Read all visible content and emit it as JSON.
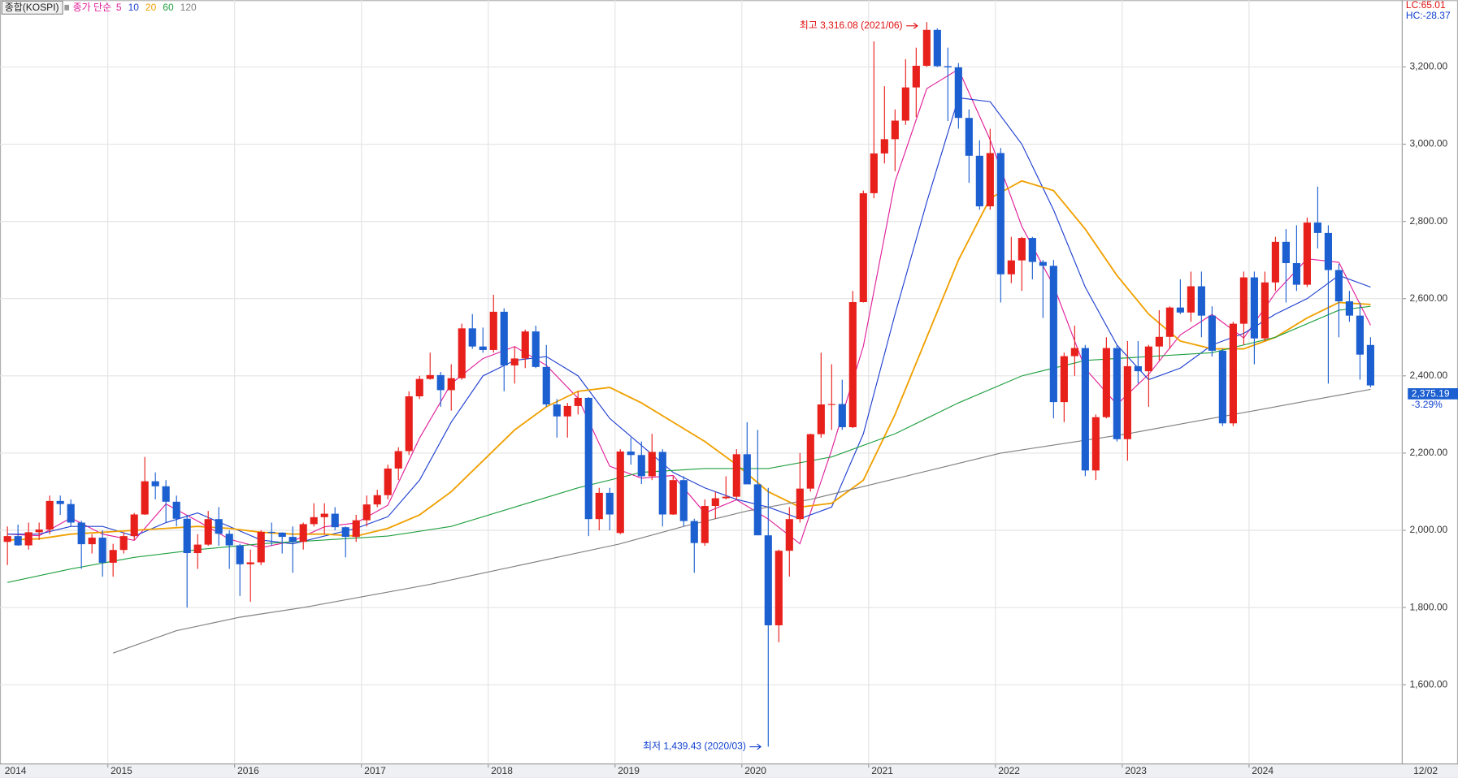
{
  "chart_data": {
    "type": "candlestick",
    "legend_title": "종합(KOSPI)",
    "ma_label": "종가 단순",
    "indicators": [
      {
        "text": "LC:65.01",
        "color": "#e01010"
      },
      {
        "text": "HC:-28.37",
        "color": "#1040d0"
      }
    ],
    "x_end_label": "12/02",
    "current_price_label": "2,375.19",
    "current_change": "-3.29%",
    "annotations": {
      "high": "최고 3,316.08 (2021/06)",
      "low": "최저 1,439.43 (2020/03)"
    },
    "categories": [
      "2014",
      null,
      null,
      null,
      null,
      null,
      null,
      null,
      null,
      null,
      "2015",
      null,
      null,
      null,
      null,
      null,
      null,
      null,
      null,
      null,
      null,
      null,
      "2016",
      null,
      null,
      null,
      null,
      null,
      null,
      null,
      null,
      null,
      null,
      null,
      "2017",
      null,
      null,
      null,
      null,
      null,
      null,
      null,
      null,
      null,
      null,
      null,
      "2018",
      null,
      null,
      null,
      null,
      null,
      null,
      null,
      null,
      null,
      null,
      null,
      "2019",
      null,
      null,
      null,
      null,
      null,
      null,
      null,
      null,
      null,
      null,
      null,
      "2020",
      null,
      null,
      null,
      null,
      null,
      null,
      null,
      null,
      null,
      null,
      null,
      "2021",
      null,
      null,
      null,
      null,
      null,
      null,
      null,
      null,
      null,
      null,
      null,
      "2022",
      null,
      null,
      null,
      null,
      null,
      null,
      null,
      null,
      null,
      null,
      null,
      "2023",
      null,
      null,
      null,
      null,
      null,
      null,
      null,
      null,
      null,
      null,
      null,
      "2024",
      null,
      null,
      null,
      null,
      null,
      null,
      null,
      null,
      null,
      null,
      null
    ],
    "candles": {
      "up_color": "#e8201c",
      "down_color": "#1c5fd0",
      "open": [
        1970,
        1985,
        1961,
        1995,
        2002,
        2076,
        2068,
        2020,
        1964,
        1981,
        1916,
        1949,
        1985,
        2041,
        2127,
        2114,
        2074,
        2030,
        1941,
        1963,
        2029,
        1991,
        1961,
        1912,
        1917,
        1996,
        1994,
        1983,
        1970,
        2016,
        2034,
        2043,
        2008,
        1983,
        2026,
        2067,
        2091,
        2160,
        2205,
        2347,
        2392,
        2402,
        2363,
        2394,
        2523,
        2476,
        2467,
        2566,
        2427,
        2445,
        2515,
        2423,
        2326,
        2295,
        2322,
        2343,
        2029,
        2097,
        1993,
        2204,
        2195,
        2140,
        2203,
        2041,
        2130,
        2024,
        1967,
        2063,
        2083,
        2087,
        2197,
        2119,
        1987,
        1754,
        1947,
        2029,
        2108,
        2249,
        2326,
        2327,
        2267,
        2591,
        2873,
        2976,
        3013,
        3061,
        3147,
        3203,
        3296,
        3202,
        3199,
        3068,
        2970,
        2839,
        2977,
        2663,
        2699,
        2757,
        2695,
        2685,
        2332,
        2451,
        2472,
        2155,
        2293,
        2472,
        2236,
        2425,
        2412,
        2476,
        2501,
        2577,
        2564,
        2632,
        2556,
        2465,
        2277,
        2535,
        2655,
        2497,
        2642,
        2747,
        2692,
        2636,
        2797,
        2770,
        2674,
        2593,
        2556,
        2480
      ],
      "high": [
        2010,
        2015,
        2020,
        2020,
        2090,
        2090,
        2080,
        2025,
        1990,
        2000,
        1965,
        1995,
        2045,
        2190,
        2150,
        2130,
        2090,
        2040,
        1990,
        2050,
        2060,
        2000,
        1965,
        1950,
        2000,
        2020,
        1995,
        2010,
        2020,
        2070,
        2070,
        2060,
        2010,
        2040,
        2090,
        2105,
        2170,
        2215,
        2360,
        2400,
        2460,
        2410,
        2430,
        2535,
        2560,
        2525,
        2610,
        2575,
        2475,
        2520,
        2530,
        2480,
        2340,
        2330,
        2360,
        2345,
        2110,
        2110,
        2210,
        2240,
        2230,
        2250,
        2210,
        2140,
        2140,
        2030,
        2080,
        2100,
        2140,
        2210,
        2280,
        2260,
        2110,
        1950,
        2060,
        2200,
        2250,
        2460,
        2430,
        2390,
        2620,
        2880,
        3266,
        3150,
        3090,
        3220,
        3250,
        3316.08,
        3300,
        3250,
        3210,
        3090,
        3010,
        3040,
        2990,
        2760,
        2760,
        2760,
        2700,
        2700,
        2460,
        2530,
        2480,
        2300,
        2500,
        2480,
        2490,
        2490,
        2480,
        2570,
        2580,
        2650,
        2670,
        2670,
        2580,
        2470,
        2540,
        2670,
        2670,
        2670,
        2760,
        2780,
        2790,
        2810,
        2890,
        2790,
        2690,
        2620,
        2590,
        2500
      ],
      "low": [
        1910,
        1960,
        1950,
        1975,
        1990,
        2040,
        2010,
        1900,
        1940,
        1880,
        1880,
        1940,
        1975,
        2040,
        2080,
        2020,
        2010,
        1800,
        1900,
        1960,
        1960,
        1900,
        1830,
        1815,
        1910,
        1960,
        1940,
        1890,
        1950,
        2010,
        1990,
        2000,
        1930,
        1970,
        2010,
        2060,
        2080,
        2130,
        2195,
        2340,
        2390,
        2320,
        2310,
        2390,
        2470,
        2460,
        2460,
        2360,
        2380,
        2420,
        2420,
        2320,
        2240,
        2240,
        2300,
        1985,
        2000,
        2000,
        1990,
        2170,
        2120,
        2130,
        2010,
        2040,
        2010,
        1890,
        1960,
        2030,
        2080,
        2080,
        2120,
        1990,
        1439.43,
        1710,
        1880,
        2020,
        2100,
        2240,
        2260,
        2260,
        2265,
        2590,
        2860,
        2950,
        2930,
        3050,
        3070,
        3200,
        3200,
        3060,
        3040,
        2900,
        2830,
        2830,
        2590,
        2640,
        2620,
        2650,
        2550,
        2290,
        2280,
        2400,
        2140,
        2130,
        2290,
        2230,
        2180,
        2380,
        2320,
        2440,
        2470,
        2560,
        2540,
        2500,
        2450,
        2270,
        2270,
        2480,
        2430,
        2490,
        2620,
        2590,
        2620,
        2630,
        2730,
        2380,
        2500,
        2540,
        2390,
        2370
      ],
      "close": [
        1985,
        1961,
        1995,
        2002,
        2076,
        2068,
        2020,
        1964,
        1981,
        1916,
        1949,
        1985,
        2041,
        2127,
        2114,
        2074,
        2030,
        1941,
        1963,
        2029,
        1991,
        1961,
        1912,
        1917,
        1996,
        1994,
        1983,
        1970,
        2016,
        2034,
        2043,
        2008,
        1983,
        2026,
        2067,
        2091,
        2160,
        2205,
        2347,
        2392,
        2402,
        2363,
        2394,
        2523,
        2476,
        2467,
        2566,
        2427,
        2445,
        2515,
        2423,
        2326,
        2295,
        2322,
        2343,
        2029,
        2097,
        2041,
        2204,
        2195,
        2140,
        2203,
        2041,
        2130,
        2024,
        1967,
        2063,
        2083,
        2087,
        2197,
        2119,
        1987,
        1754,
        1947,
        2029,
        2108,
        2249,
        2326,
        2327,
        2267,
        2591,
        2873,
        2976,
        3013,
        3061,
        3147,
        3203,
        3296,
        3202,
        3199,
        3068,
        2970,
        2839,
        2977,
        2663,
        2699,
        2757,
        2695,
        2685,
        2332,
        2451,
        2472,
        2155,
        2293,
        2472,
        2236,
        2425,
        2412,
        2476,
        2501,
        2577,
        2564,
        2632,
        2556,
        2465,
        2277,
        2535,
        2655,
        2497,
        2642,
        2747,
        2692,
        2636,
        2797,
        2770,
        2674,
        2593,
        2556,
        2455,
        2375.19
      ]
    },
    "series": [
      {
        "name": "5",
        "color": "#e0209a",
        "x": [
          0,
          3,
          6,
          9,
          12,
          15,
          18,
          21,
          24,
          27,
          30,
          33,
          36,
          39,
          42,
          45,
          48,
          51,
          54,
          57,
          60,
          63,
          66,
          69,
          72,
          75,
          78,
          81,
          84,
          87,
          90,
          93,
          96,
          99,
          102,
          105,
          108,
          111,
          114,
          117,
          120,
          123,
          126,
          129
        ],
        "values": [
          1990,
          1986,
          2032,
          1990,
          1974,
          2068,
          2024,
          1977,
          1955,
          1972,
          2009,
          2019,
          2065,
          2239,
          2380,
          2445,
          2476,
          2427,
          2342,
          2166,
          2135,
          2142,
          2045,
          2079,
          2029,
          1965,
          2208,
          2477,
          2903,
          3144,
          3194,
          3011,
          2787,
          2634,
          2419,
          2326,
          2404,
          2506,
          2559,
          2498,
          2615,
          2703,
          2694,
          2531
        ]
      },
      {
        "name": "10",
        "color": "#2040d0",
        "x": [
          0,
          3,
          6,
          9,
          12,
          15,
          18,
          21,
          24,
          27,
          30,
          33,
          36,
          39,
          42,
          45,
          48,
          51,
          54,
          57,
          60,
          63,
          66,
          69,
          72,
          75,
          78,
          81,
          84,
          87,
          90,
          93,
          96,
          99,
          102,
          105,
          108,
          111,
          114,
          117,
          120,
          123,
          126,
          129
        ],
        "values": [
          1990,
          1990,
          2010,
          2010,
          1985,
          2020,
          2045,
          2010,
          1975,
          1965,
          1985,
          2005,
          2035,
          2130,
          2280,
          2400,
          2440,
          2450,
          2400,
          2290,
          2220,
          2150,
          2110,
          2080,
          2060,
          2030,
          2060,
          2250,
          2560,
          2850,
          3120,
          3110,
          3000,
          2830,
          2630,
          2480,
          2390,
          2420,
          2480,
          2510,
          2560,
          2600,
          2660,
          2630
        ]
      },
      {
        "name": "20",
        "color": "#f0a000",
        "x": [
          0,
          3,
          6,
          9,
          12,
          15,
          18,
          21,
          24,
          27,
          30,
          33,
          36,
          39,
          42,
          45,
          48,
          51,
          54,
          57,
          60,
          63,
          66,
          69,
          72,
          75,
          78,
          81,
          84,
          87,
          90,
          93,
          96,
          99,
          102,
          105,
          108,
          111,
          114,
          117,
          120,
          123,
          126,
          129
        ],
        "values": [
          1975,
          1978,
          1990,
          1995,
          2000,
          2005,
          2010,
          2005,
          1995,
          1990,
          1990,
          1985,
          2005,
          2040,
          2100,
          2180,
          2260,
          2320,
          2360,
          2370,
          2330,
          2280,
          2230,
          2170,
          2100,
          2060,
          2070,
          2130,
          2300,
          2500,
          2700,
          2860,
          2905,
          2880,
          2780,
          2660,
          2560,
          2490,
          2470,
          2470,
          2500,
          2550,
          2590,
          2585
        ]
      },
      {
        "name": "60",
        "color": "#20a040",
        "x": [
          0,
          6,
          12,
          18,
          24,
          30,
          36,
          42,
          48,
          54,
          60,
          66,
          72,
          78,
          84,
          90,
          96,
          102,
          108,
          114,
          120,
          126,
          129
        ],
        "values": [
          1865,
          1900,
          1930,
          1950,
          1965,
          1975,
          1985,
          2010,
          2060,
          2110,
          2150,
          2160,
          2160,
          2190,
          2250,
          2330,
          2400,
          2440,
          2450,
          2460,
          2500,
          2570,
          2580
        ]
      },
      {
        "name": "120",
        "color": "#808080",
        "x": [
          10,
          16,
          22,
          28,
          34,
          40,
          46,
          52,
          58,
          64,
          70,
          76,
          82,
          88,
          94,
          100,
          106,
          112,
          118,
          124,
          129
        ],
        "values": [
          1682,
          1740,
          1775,
          1800,
          1830,
          1860,
          1895,
          1930,
          1965,
          2010,
          2050,
          2080,
          2120,
          2160,
          2200,
          2225,
          2250,
          2280,
          2310,
          2340,
          2365
        ]
      }
    ],
    "ylim": [
      1395,
      3373
    ],
    "yticks": [
      {
        "value": 1600,
        "label": "1,600.00"
      },
      {
        "value": 1800,
        "label": "1,800.00"
      },
      {
        "value": 2000,
        "label": "2,000.00"
      },
      {
        "value": 2200,
        "label": "2,200.00"
      },
      {
        "value": 2400,
        "label": "2,400.00"
      },
      {
        "value": 2600,
        "label": "2,600.00"
      },
      {
        "value": 2800,
        "label": "2,800.00"
      },
      {
        "value": 3000,
        "label": "3,000.00"
      },
      {
        "value": 3200,
        "label": "3,200.00"
      }
    ],
    "grid": true
  }
}
